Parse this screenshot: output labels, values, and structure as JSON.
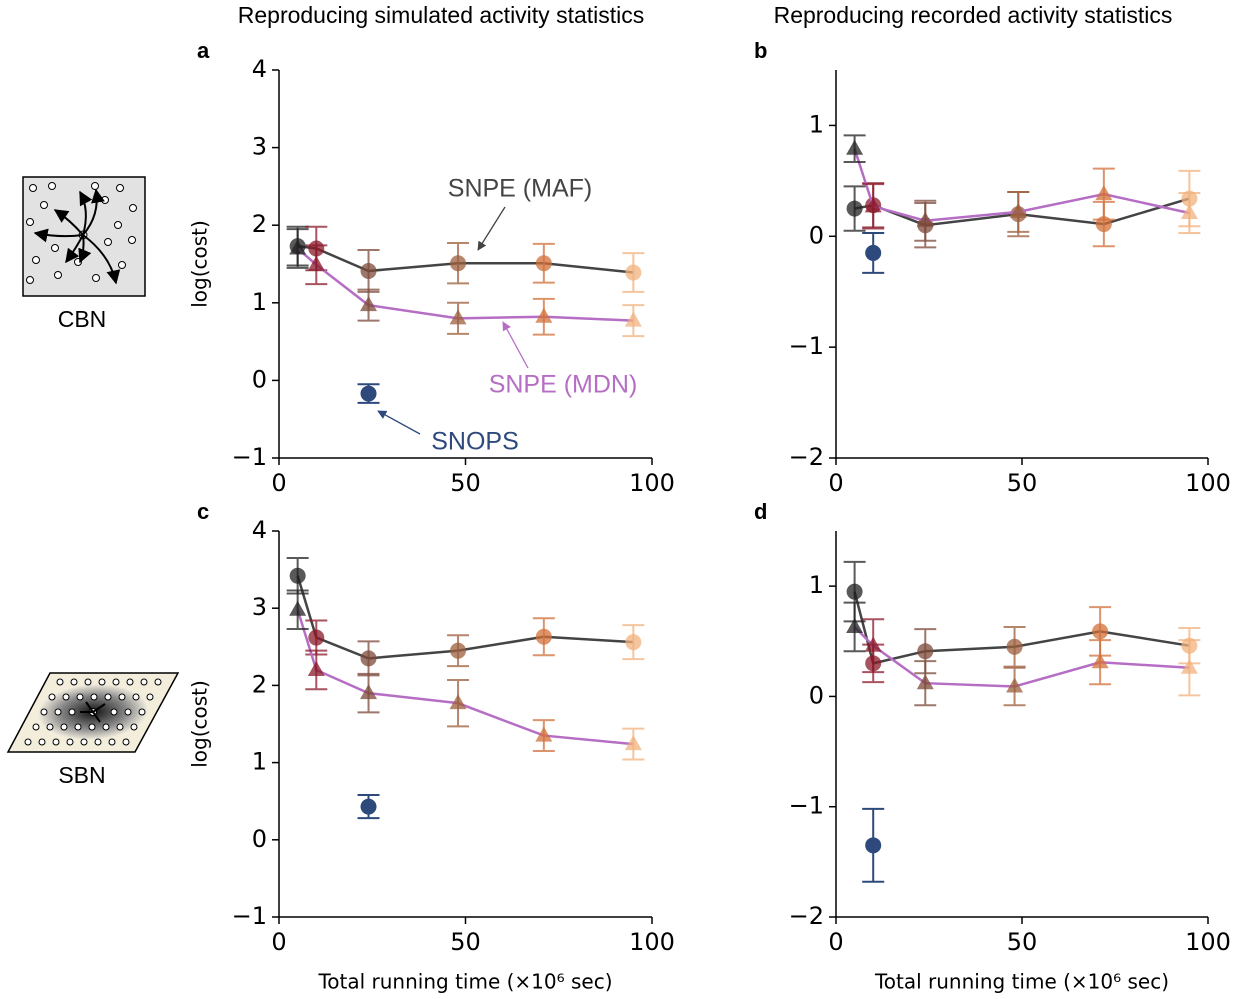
{
  "column_titles": [
    "Reproducing simulated activity statistics",
    "Reproducing recorded activity statistics"
  ],
  "row_labels": [
    "CBN",
    "SBN"
  ],
  "chart_data": [
    {
      "type": "line",
      "panel_label": "a",
      "ylabel": "log(cost)",
      "xlim": [
        0,
        100
      ],
      "xticks": [
        0,
        50,
        100
      ],
      "ylim": [
        -1,
        4
      ],
      "yticks": [
        {
          "value": -1,
          "label": "−1"
        },
        0,
        1,
        2,
        3,
        4
      ],
      "series": [
        {
          "name": "SNPE (MAF)",
          "color": "#444444",
          "marker": "circle",
          "point_colors": [
            "#222222",
            "#8b1a2b",
            "#7d4a3a",
            "#9c5f3d",
            "#d2703a",
            "#f2b27e"
          ],
          "x": [
            5,
            10,
            24,
            48,
            71,
            95
          ],
          "values": [
            1.73,
            1.7,
            1.41,
            1.51,
            1.51,
            1.39
          ],
          "errors": [
            0.25,
            0.28,
            0.27,
            0.26,
            0.25,
            0.25
          ]
        },
        {
          "name": "SNPE (MDN)",
          "color": "#b56ec4",
          "marker": "triangle",
          "point_colors": [
            "#222222",
            "#8b1a2b",
            "#7d4a3a",
            "#9c5f3d",
            "#d2703a",
            "#f2b27e"
          ],
          "x": [
            5,
            10,
            24,
            48,
            71,
            95
          ],
          "values": [
            1.7,
            1.49,
            0.97,
            0.8,
            0.82,
            0.77
          ],
          "errors": [
            0.25,
            0.25,
            0.2,
            0.2,
            0.23,
            0.2
          ]
        },
        {
          "name": "SNOPS",
          "color": "#2e4a7d",
          "marker": "circle",
          "x": [
            24
          ],
          "values": [
            -0.17
          ],
          "errors": [
            0.12
          ]
        }
      ]
    },
    {
      "type": "line",
      "panel_label": "b",
      "xlim": [
        0,
        100
      ],
      "xticks": [
        0,
        50,
        100
      ],
      "ylim": [
        -2,
        1.5
      ],
      "yticks": [
        {
          "value": -2,
          "label": "−2"
        },
        {
          "value": -1,
          "label": "−1"
        },
        0,
        1
      ],
      "series": [
        {
          "color": "#444444",
          "marker": "circle",
          "point_colors": [
            "#222222",
            "#8b1a2b",
            "#7d4a3a",
            "#9c5f3d",
            "#d2703a",
            "#f2b27e"
          ],
          "x": [
            5,
            10,
            24,
            49,
            72,
            95
          ],
          "values": [
            0.25,
            0.28,
            0.1,
            0.2,
            0.11,
            0.34
          ],
          "errors": [
            0.2,
            0.2,
            0.2,
            0.2,
            0.2,
            0.25
          ]
        },
        {
          "color": "#b56ec4",
          "marker": "triangle",
          "point_colors": [
            "#222222",
            "#8b1a2b",
            "#7d4a3a",
            "#9c5f3d",
            "#d2703a",
            "#f2b27e"
          ],
          "x": [
            5,
            10,
            24,
            49,
            72,
            95
          ],
          "values": [
            0.79,
            0.27,
            0.14,
            0.22,
            0.38,
            0.21
          ],
          "errors": [
            0.12,
            0.2,
            0.18,
            0.18,
            0.23,
            0.18
          ]
        },
        {
          "color": "#2e4a7d",
          "marker": "circle",
          "x": [
            10
          ],
          "values": [
            -0.15
          ],
          "errors": [
            0.18
          ]
        }
      ]
    },
    {
      "type": "line",
      "panel_label": "c",
      "ylabel": "log(cost)",
      "xlabel": "Total running time (×10⁶ sec)",
      "xlim": [
        0,
        100
      ],
      "xticks": [
        0,
        50,
        100
      ],
      "ylim": [
        -1,
        4
      ],
      "yticks": [
        {
          "value": -1,
          "label": "−1"
        },
        0,
        1,
        2,
        3,
        4
      ],
      "series": [
        {
          "color": "#444444",
          "marker": "circle",
          "point_colors": [
            "#222222",
            "#8b1a2b",
            "#7d4a3a",
            "#9c5f3d",
            "#d2703a",
            "#f2b27e"
          ],
          "x": [
            5,
            10,
            24,
            48,
            71,
            95
          ],
          "values": [
            3.42,
            2.62,
            2.35,
            2.45,
            2.63,
            2.56
          ],
          "errors": [
            0.23,
            0.22,
            0.22,
            0.2,
            0.24,
            0.22
          ]
        },
        {
          "color": "#b56ec4",
          "marker": "triangle",
          "point_colors": [
            "#222222",
            "#8b1a2b",
            "#7d4a3a",
            "#9c5f3d",
            "#d2703a",
            "#f2b27e"
          ],
          "x": [
            5,
            10,
            24,
            48,
            71,
            95
          ],
          "values": [
            2.98,
            2.2,
            1.9,
            1.77,
            1.35,
            1.24
          ],
          "errors": [
            0.25,
            0.25,
            0.25,
            0.3,
            0.2,
            0.2
          ]
        },
        {
          "color": "#2e4a7d",
          "marker": "circle",
          "x": [
            24
          ],
          "values": [
            0.43
          ],
          "errors": [
            0.15
          ]
        }
      ]
    },
    {
      "type": "line",
      "panel_label": "d",
      "xlabel": "Total running time (×10⁶ sec)",
      "xlim": [
        0,
        100
      ],
      "xticks": [
        0,
        50,
        100
      ],
      "ylim": [
        -2,
        1.5
      ],
      "yticks": [
        {
          "value": -2,
          "label": "−2"
        },
        {
          "value": -1,
          "label": "−1"
        },
        0,
        1
      ],
      "series": [
        {
          "color": "#444444",
          "marker": "circle",
          "point_colors": [
            "#222222",
            "#8b1a2b",
            "#7d4a3a",
            "#9c5f3d",
            "#d2703a",
            "#f2b27e"
          ],
          "x": [
            5,
            10,
            24,
            48,
            71,
            95
          ],
          "values": [
            0.95,
            0.3,
            0.41,
            0.45,
            0.59,
            0.46
          ],
          "errors": [
            0.27,
            0.17,
            0.2,
            0.18,
            0.22,
            0.16
          ]
        },
        {
          "color": "#b56ec4",
          "marker": "triangle",
          "point_colors": [
            "#222222",
            "#8b1a2b",
            "#7d4a3a",
            "#9c5f3d",
            "#d2703a",
            "#f2b27e"
          ],
          "x": [
            5,
            10,
            24,
            48,
            71,
            95
          ],
          "values": [
            0.63,
            0.46,
            0.12,
            0.09,
            0.31,
            0.26
          ],
          "errors": [
            0.22,
            0.24,
            0.2,
            0.17,
            0.2,
            0.25
          ]
        },
        {
          "color": "#2e4a7d",
          "marker": "circle",
          "x": [
            10
          ],
          "values": [
            -1.35
          ],
          "errors": [
            0.33
          ]
        }
      ]
    }
  ]
}
